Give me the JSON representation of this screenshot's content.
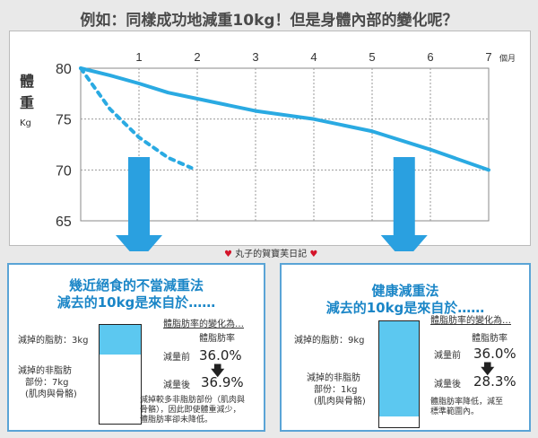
{
  "title": "例如：同樣成功地減重10kg！但是身體內部的變化呢？",
  "chart_data": {
    "type": "line",
    "ylabel": "體重",
    "yunit": "Kg",
    "xunit": "個月",
    "ylim": [
      65,
      80
    ],
    "xlim": [
      0,
      7
    ],
    "y_ticks": [
      "80",
      "75",
      "70",
      "65"
    ],
    "x_ticks": [
      "1",
      "2",
      "3",
      "4",
      "5",
      "6",
      "7"
    ],
    "grid": "dashed",
    "series": [
      {
        "style": "solid",
        "x": [
          0,
          0.5,
          1,
          1.5,
          2,
          3,
          4,
          5,
          6,
          7
        ],
        "y": [
          80,
          79.3,
          78.5,
          77.6,
          77.0,
          75.8,
          75.0,
          73.8,
          72.0,
          70.0
        ]
      },
      {
        "style": "dotted",
        "x": [
          0,
          0.5,
          1,
          1.5,
          1.9
        ],
        "y": [
          80,
          76.0,
          73.2,
          71.2,
          70.2
        ]
      }
    ]
  },
  "watermark": "丸子的賀寶芙日記",
  "left_box": {
    "heading": [
      "幾近絕食的不當減重法",
      "減去的10kg是來自於……"
    ],
    "fat_label": "減掉的脂肪：3kg",
    "nonfat_label": [
      "減掉的非脂肪",
      "部份：7kg",
      "(肌肉與骨骼)"
    ],
    "bar_fill_fraction": 0.3,
    "change_title": "體脂肪率的變化為…",
    "rate_header": "體脂肪率",
    "before_label": "減量前",
    "before_value": "36.0%",
    "after_label": "減量後",
    "after_value": "36.9%",
    "note": [
      "減掉較多非脂肪部份（肌肉與",
      "骨骼），因此即使體重減少，",
      "體脂肪率卻未降低。"
    ]
  },
  "right_box": {
    "heading": [
      "健康減重法",
      "減去的10kg是來自於……"
    ],
    "fat_label": "減掉的脂肪：9kg",
    "nonfat_label": [
      "減掉的非脂肪",
      "部份：1kg",
      "(肌肉與骨骼)"
    ],
    "bar_fill_fraction": 0.9,
    "change_title": "體脂肪率的變化為…",
    "rate_header": "體脂肪率",
    "before_label": "減量前",
    "before_value": "36.0%",
    "after_label": "減量後",
    "after_value": "28.3%",
    "note": [
      "體脂肪率降低，減至",
      "標準範圍內。"
    ]
  },
  "colors": {
    "accent": "#1b86c7",
    "line": "#2aaae2",
    "arrow": "#2aa0e0",
    "fill": "#5cc8f0"
  }
}
